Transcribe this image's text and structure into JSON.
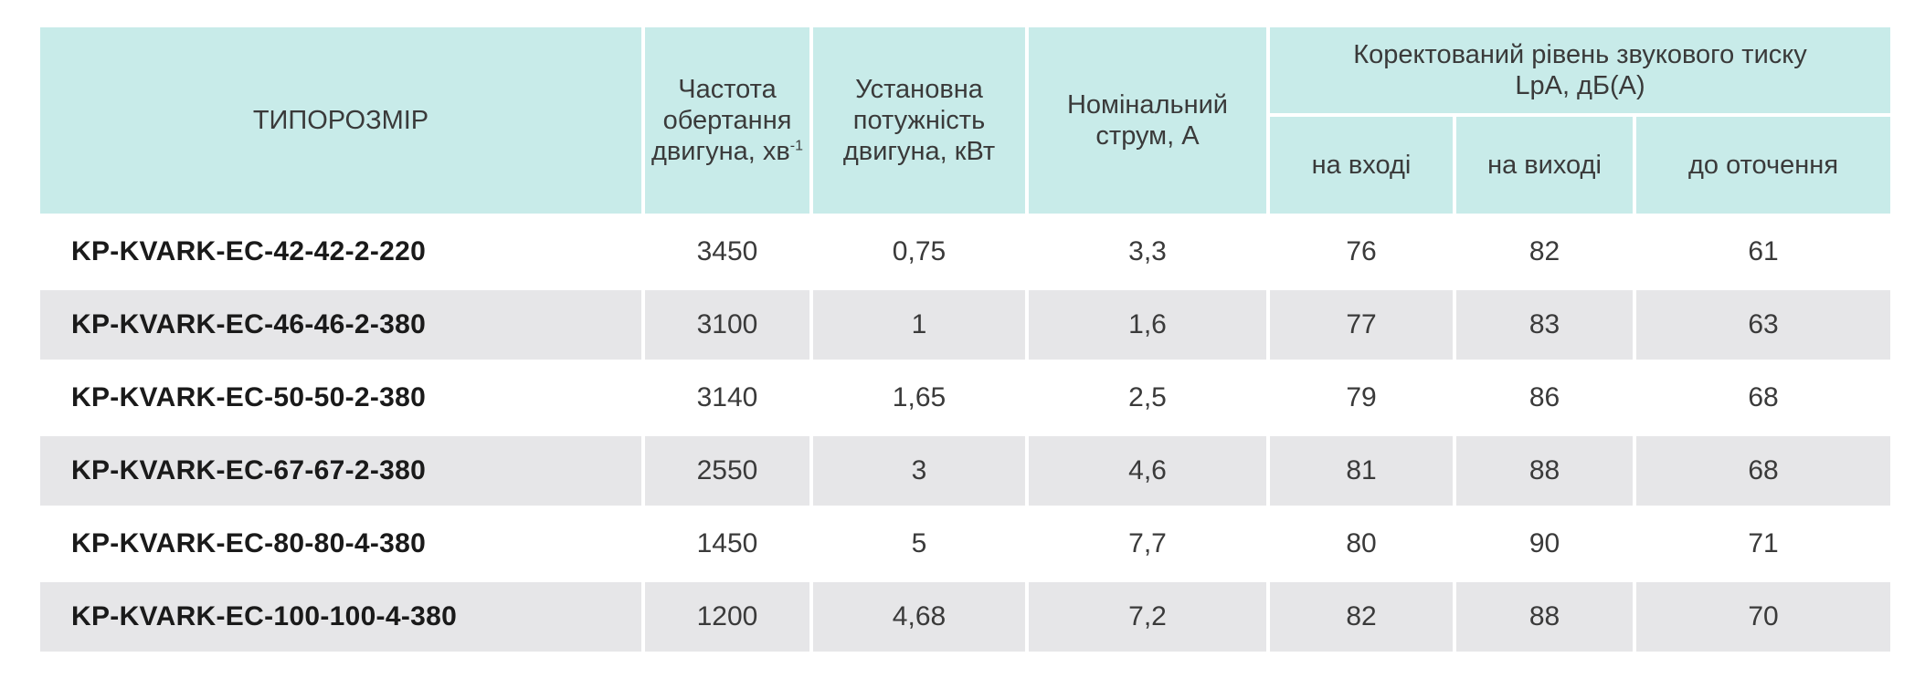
{
  "table": {
    "headers": {
      "size": "ТИПОРОЗМІР",
      "frequency": {
        "main": "Частота обертання двигуна, хв",
        "sup": "-1"
      },
      "power": "Установна потужність двигуна, кВт",
      "current": "Номінальний струм, А",
      "sound_group_line1": "Коректований рівень звукового тиску",
      "sound_group_line2": "LpA, дБ(А)",
      "inlet": "на вході",
      "outlet": "на виході",
      "surroundings": "до оточення"
    },
    "rows": [
      {
        "model": "KP-KVARK-EC-42-42-2-220",
        "frequency": "3450",
        "power": "0,75",
        "current": "3,3",
        "inlet": "76",
        "outlet": "82",
        "surroundings": "61"
      },
      {
        "model": "KP-KVARK-EC-46-46-2-380",
        "frequency": "3100",
        "power": "1",
        "current": "1,6",
        "inlet": "77",
        "outlet": "83",
        "surroundings": "63"
      },
      {
        "model": "KP-KVARK-EC-50-50-2-380",
        "frequency": "3140",
        "power": "1,65",
        "current": "2,5",
        "inlet": "79",
        "outlet": "86",
        "surroundings": "68"
      },
      {
        "model": "KP-KVARK-EC-67-67-2-380",
        "frequency": "2550",
        "power": "3",
        "current": "4,6",
        "inlet": "81",
        "outlet": "88",
        "surroundings": "68"
      },
      {
        "model": "KP-KVARK-EC-80-80-4-380",
        "frequency": "1450",
        "power": "5",
        "current": "7,7",
        "inlet": "80",
        "outlet": "90",
        "surroundings": "71"
      },
      {
        "model": "KP-KVARK-EC-100-100-4-380",
        "frequency": "1200",
        "power": "4,68",
        "current": "7,2",
        "inlet": "82",
        "outlet": "88",
        "surroundings": "70"
      }
    ]
  },
  "colors": {
    "header_bg": "#c8ebe9",
    "row_shade": "#e6e6e8",
    "text": "#3a3a3a"
  }
}
